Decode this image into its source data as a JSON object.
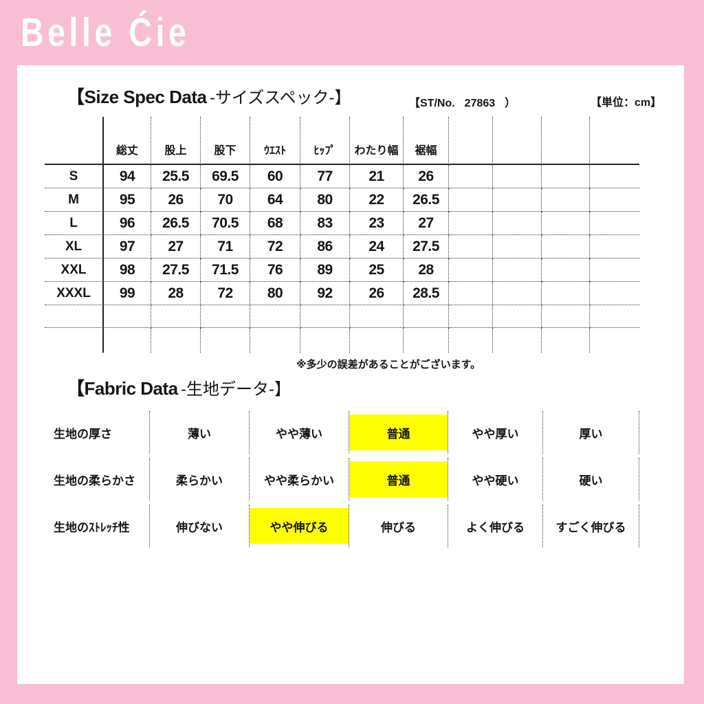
{
  "brand": "Belle Ćie",
  "colors": {
    "background_pink": "#f8bed3",
    "highlight_yellow": "#ffff00",
    "text": "#161616"
  },
  "size_section": {
    "title_en": "【Size Spec Data",
    "title_ja": "-サイズスペック-】",
    "st_no_label": "【ST/No.",
    "st_no_value": "27863",
    "st_no_close": "）",
    "unit_label": "【単位：cm】",
    "columns": [
      "総丈",
      "股上",
      "股下",
      "ｳｴｽﾄ",
      "ﾋｯﾌﾟ",
      "わたり幅",
      "裾幅"
    ],
    "rows": [
      {
        "size": "S",
        "values": [
          "94",
          "25.5",
          "69.5",
          "60",
          "77",
          "21",
          "26"
        ]
      },
      {
        "size": "M",
        "values": [
          "95",
          "26",
          "70",
          "64",
          "80",
          "22",
          "26.5"
        ]
      },
      {
        "size": "L",
        "values": [
          "96",
          "26.5",
          "70.5",
          "68",
          "83",
          "23",
          "27"
        ]
      },
      {
        "size": "XL",
        "values": [
          "97",
          "27",
          "71",
          "72",
          "86",
          "24",
          "27.5"
        ]
      },
      {
        "size": "XXL",
        "values": [
          "98",
          "27.5",
          "71.5",
          "76",
          "89",
          "25",
          "28"
        ]
      },
      {
        "size": "XXXL",
        "values": [
          "99",
          "28",
          "72",
          "80",
          "92",
          "26",
          "28.5"
        ]
      }
    ],
    "note": "※多少の誤差があることがございます。"
  },
  "fabric_section": {
    "title_en": "【Fabric Data",
    "title_ja": "-生地データ-】",
    "rows": [
      {
        "label": "生地の厚さ",
        "options": [
          "薄い",
          "やや薄い",
          "普通",
          "やや厚い",
          "厚い"
        ],
        "selected_index": 2
      },
      {
        "label": "生地の柔らかさ",
        "options": [
          "柔らかい",
          "やや柔らかい",
          "普通",
          "やや硬い",
          "硬い"
        ],
        "selected_index": 2
      },
      {
        "label": "生地のｽﾄﾚｯﾁ性",
        "options": [
          "伸びない",
          "やや伸びる",
          "伸びる",
          "よく伸びる",
          "すごく伸びる"
        ],
        "selected_index": 1
      }
    ]
  }
}
